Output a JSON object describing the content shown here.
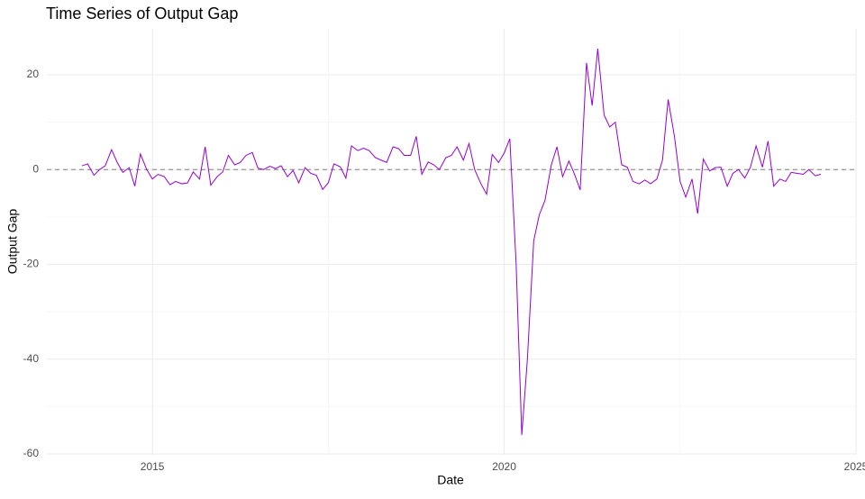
{
  "chart_data": {
    "type": "line",
    "title": "Time Series of Output Gap",
    "x_label": "Date",
    "y_label": "Output Gap",
    "x": [
      2014.0,
      2014.08,
      2014.17,
      2014.25,
      2014.33,
      2014.42,
      2014.5,
      2014.58,
      2014.67,
      2014.75,
      2014.83,
      2014.92,
      2015.0,
      2015.08,
      2015.17,
      2015.25,
      2015.33,
      2015.42,
      2015.5,
      2015.58,
      2015.67,
      2015.75,
      2015.83,
      2015.92,
      2016.0,
      2016.08,
      2016.17,
      2016.25,
      2016.33,
      2016.42,
      2016.5,
      2016.58,
      2016.67,
      2016.75,
      2016.83,
      2016.92,
      2017.0,
      2017.08,
      2017.17,
      2017.25,
      2017.33,
      2017.42,
      2017.5,
      2017.58,
      2017.67,
      2017.75,
      2017.83,
      2017.92,
      2018.0,
      2018.08,
      2018.17,
      2018.25,
      2018.33,
      2018.42,
      2018.5,
      2018.58,
      2018.67,
      2018.75,
      2018.83,
      2018.92,
      2019.0,
      2019.08,
      2019.17,
      2019.25,
      2019.33,
      2019.42,
      2019.5,
      2019.58,
      2019.67,
      2019.75,
      2019.83,
      2019.92,
      2020.0,
      2020.08,
      2020.17,
      2020.25,
      2020.33,
      2020.42,
      2020.5,
      2020.58,
      2020.67,
      2020.75,
      2020.83,
      2020.92,
      2021.0,
      2021.08,
      2021.17,
      2021.25,
      2021.33,
      2021.42,
      2021.5,
      2021.58,
      2021.67,
      2021.75,
      2021.83,
      2021.92,
      2022.0,
      2022.08,
      2022.17,
      2022.25,
      2022.33,
      2022.42,
      2022.5,
      2022.58,
      2022.67,
      2022.75,
      2022.83,
      2022.92,
      2023.0,
      2023.08,
      2023.17,
      2023.25,
      2023.33,
      2023.42,
      2023.5,
      2023.58,
      2023.67,
      2023.75,
      2023.83,
      2023.92,
      2024.0,
      2024.08,
      2024.17,
      2024.25,
      2024.33,
      2024.42,
      2024.5
    ],
    "series": [
      {
        "name": "Output Gap",
        "color": "#9400d3",
        "values": [
          0.8,
          1.2,
          -1.2,
          0,
          0.8,
          4.2,
          1.5,
          -0.6,
          0.4,
          -3.5,
          3.3,
          0,
          -2,
          -1,
          -1.5,
          -3.2,
          -2.5,
          -3,
          -2.8,
          -0.5,
          -2,
          4.8,
          -3.3,
          -1.5,
          -0.5,
          3,
          1,
          1.5,
          3,
          3.6,
          0.3,
          0,
          0.7,
          0.2,
          0.8,
          -1.5,
          -0.2,
          -2.8,
          0.4,
          -0.8,
          -1.2,
          -4.2,
          -2.8,
          1.2,
          0.6,
          -1.8,
          5,
          4,
          4.5,
          4,
          2.5,
          2,
          1.5,
          4.8,
          4.4,
          3,
          3,
          7,
          -1,
          1.6,
          1,
          0,
          2.5,
          3,
          4.8,
          2,
          5.5,
          0,
          -3,
          -5.2,
          3.2,
          1.5,
          3.5,
          6.5,
          -20,
          -56,
          -40,
          -15,
          -9.5,
          -6.5,
          1,
          4.8,
          -1.5,
          1.8,
          -1,
          -4.3,
          22.5,
          13.5,
          25.5,
          11.5,
          9,
          10,
          1,
          0.5,
          -2.5,
          -3,
          -2.2,
          -3,
          -2,
          2,
          14.8,
          7,
          -2.5,
          -5.8,
          -2,
          -9.3,
          2.2,
          -0.3,
          0.4,
          0.5,
          -3.5,
          -0.8,
          0,
          -1.8,
          0.5,
          5,
          0.5,
          6,
          -3.5,
          -2,
          -2.5,
          -0.6,
          -0.8,
          -1,
          0,
          -1.3,
          -1
        ]
      }
    ],
    "reference_line": 0,
    "xlim": [
      2013.5,
      2025
    ],
    "xticks": [
      2015,
      2020,
      2025
    ],
    "ylim": [
      -60.2,
      29.7
    ],
    "yticks": [
      -60,
      -40,
      -20,
      0,
      20
    ],
    "grid": true
  }
}
